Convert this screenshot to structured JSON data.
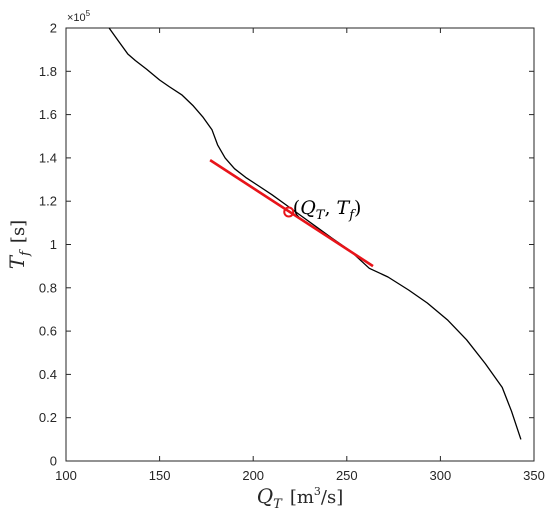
{
  "chart_data": {
    "type": "line",
    "title": "",
    "xlabel": "Q_T [m^3/s]",
    "ylabel": "T_f [s]",
    "xlim": [
      100,
      350
    ],
    "ylim": [
      0,
      200000
    ],
    "y_multiplier_label": "×10^5",
    "x_ticks": [
      "100",
      "150",
      "200",
      "250",
      "300",
      "350"
    ],
    "y_ticks": [
      "0",
      "0.2",
      "0.4",
      "0.6",
      "0.8",
      "1",
      "1.2",
      "1.4",
      "1.6",
      "1.8",
      "2"
    ],
    "grid": false,
    "colors": {
      "curve": "#000000",
      "tangent": "#e8141a",
      "point": "#e8141a"
    },
    "series": [
      {
        "style": "curve",
        "x": [
          123,
          128,
          133,
          137,
          143,
          150,
          155,
          162,
          168,
          173,
          178,
          181,
          185,
          190,
          196,
          203,
          210,
          218,
          226,
          234,
          242,
          252,
          262,
          272,
          283,
          293,
          304,
          314,
          324,
          333,
          338,
          343
        ],
        "y": [
          200000,
          194000,
          188000,
          185000,
          181000,
          176000,
          173000,
          169000,
          164000,
          159000,
          153000,
          146000,
          140000,
          135000,
          131000,
          127000,
          123000,
          118000,
          113000,
          108000,
          103000,
          97000,
          89000,
          85000,
          79000,
          73000,
          65000,
          56000,
          45000,
          34000,
          23000,
          10000
        ]
      },
      {
        "style": "tangent",
        "x": [
          177,
          264
        ],
        "y": [
          139000,
          90000
        ]
      }
    ],
    "point": {
      "x": 219,
      "y": 115000
    },
    "annotation": {
      "label_open": "(",
      "q": "Q",
      "q_sub": "T",
      "sep": ", ",
      "t": "T",
      "t_sub": "f",
      "label_close": ")"
    },
    "xlabel_parts": {
      "sym": "Q",
      "sub": "T",
      "unit_a": "[m",
      "unit_sup": "3",
      "unit_b": "/s]"
    },
    "ylabel_parts": {
      "sym": "T",
      "sub": "f",
      "unit": "[s]"
    }
  }
}
